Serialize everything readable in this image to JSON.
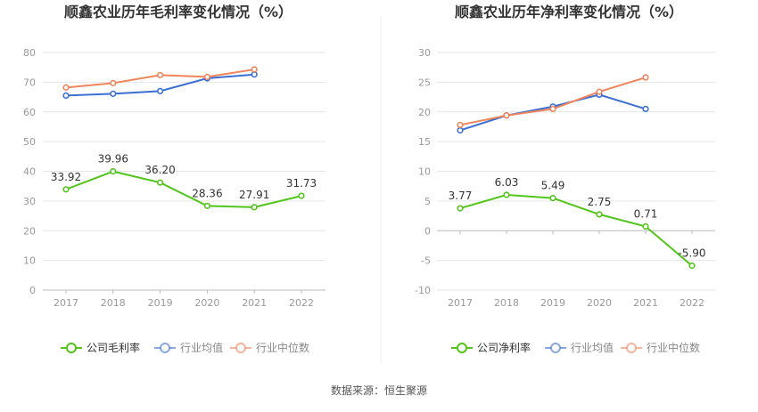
{
  "chart_data": [
    {
      "type": "line",
      "title": "顺鑫农业历年毛利率变化情况（%）",
      "categories": [
        "2017",
        "2018",
        "2019",
        "2020",
        "2021",
        "2022"
      ],
      "ylim": [
        0,
        80
      ],
      "yticks": [
        0,
        10,
        20,
        30,
        40,
        50,
        60,
        70,
        80
      ],
      "grid": true,
      "legend_position": "bottom",
      "series": [
        {
          "name": "公司毛利率",
          "color": "#52c41a",
          "values": [
            33.92,
            39.96,
            36.2,
            28.36,
            27.91,
            31.73
          ],
          "labels": [
            "33.92",
            "39.96",
            "36.20",
            "28.36",
            "27.91",
            "31.73"
          ]
        },
        {
          "name": "行业均值",
          "color": "#3b6fd4",
          "values": [
            65.5,
            66.1,
            67.0,
            71.3,
            72.6,
            null
          ]
        },
        {
          "name": "行业中位数",
          "color": "#f0845a",
          "values": [
            68.2,
            69.7,
            72.4,
            71.8,
            74.3,
            null
          ]
        }
      ]
    },
    {
      "type": "line",
      "title": "顺鑫农业历年净利率变化情况（%）",
      "categories": [
        "2017",
        "2018",
        "2019",
        "2020",
        "2021",
        "2022"
      ],
      "ylim": [
        -10,
        30
      ],
      "yticks": [
        -10,
        -5,
        0,
        5,
        10,
        15,
        20,
        25,
        30
      ],
      "grid": true,
      "legend_position": "bottom",
      "series": [
        {
          "name": "公司净利率",
          "color": "#52c41a",
          "values": [
            3.77,
            6.03,
            5.49,
            2.75,
            0.71,
            -5.9
          ],
          "labels": [
            "3.77",
            "6.03",
            "5.49",
            "2.75",
            "0.71",
            "-5.90"
          ]
        },
        {
          "name": "行业均值",
          "color": "#3b6fd4",
          "values": [
            16.9,
            19.4,
            20.9,
            22.9,
            20.5,
            null
          ]
        },
        {
          "name": "行业中位数",
          "color": "#f0845a",
          "values": [
            17.8,
            19.4,
            20.5,
            23.4,
            25.8,
            null
          ]
        }
      ]
    }
  ],
  "footer": {
    "source": "数据来源：恒生聚源"
  }
}
